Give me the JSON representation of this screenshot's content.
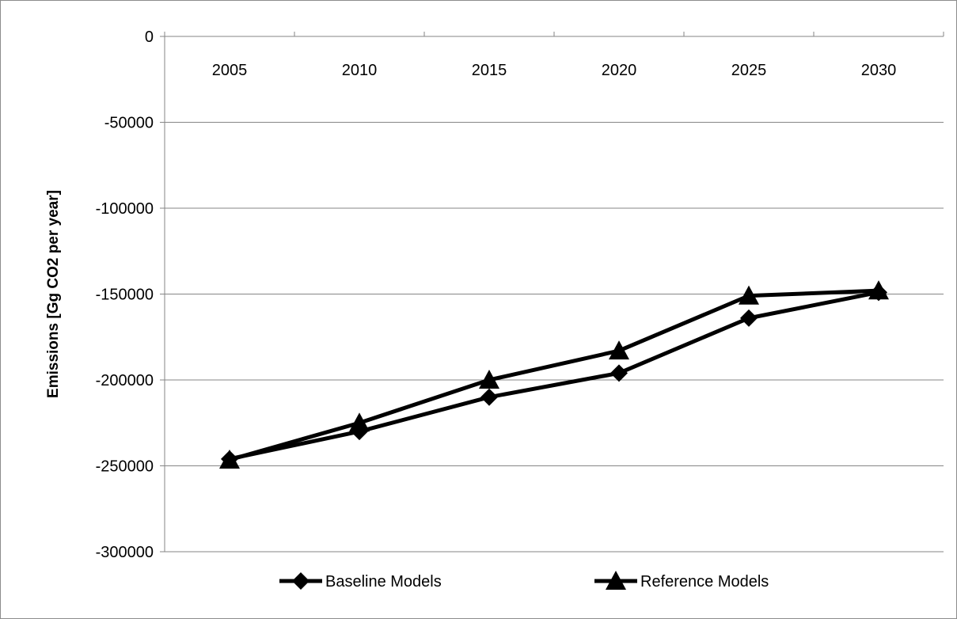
{
  "chart_data": {
    "type": "line",
    "title": "",
    "xlabel": "",
    "ylabel": "Emissions [Gg CO2 per year]",
    "categories": [
      "2005",
      "2010",
      "2015",
      "2020",
      "2025",
      "2030"
    ],
    "ylim": [
      -300000,
      0
    ],
    "yticks": [
      "0",
      "-50000",
      "-100000",
      "-150000",
      "-200000",
      "-250000",
      "-300000"
    ],
    "grid": true,
    "x_axis_position": "top",
    "legend_position": "bottom",
    "series": [
      {
        "name": "Baseline Models",
        "marker": "diamond",
        "color": "#000000",
        "values": [
          -246000,
          -230000,
          -210000,
          -196000,
          -164000,
          -149000
        ]
      },
      {
        "name": "Reference Models",
        "marker": "triangle",
        "color": "#000000",
        "values": [
          -246500,
          -225000,
          -200000,
          -183000,
          -151000,
          -148000
        ]
      }
    ]
  }
}
